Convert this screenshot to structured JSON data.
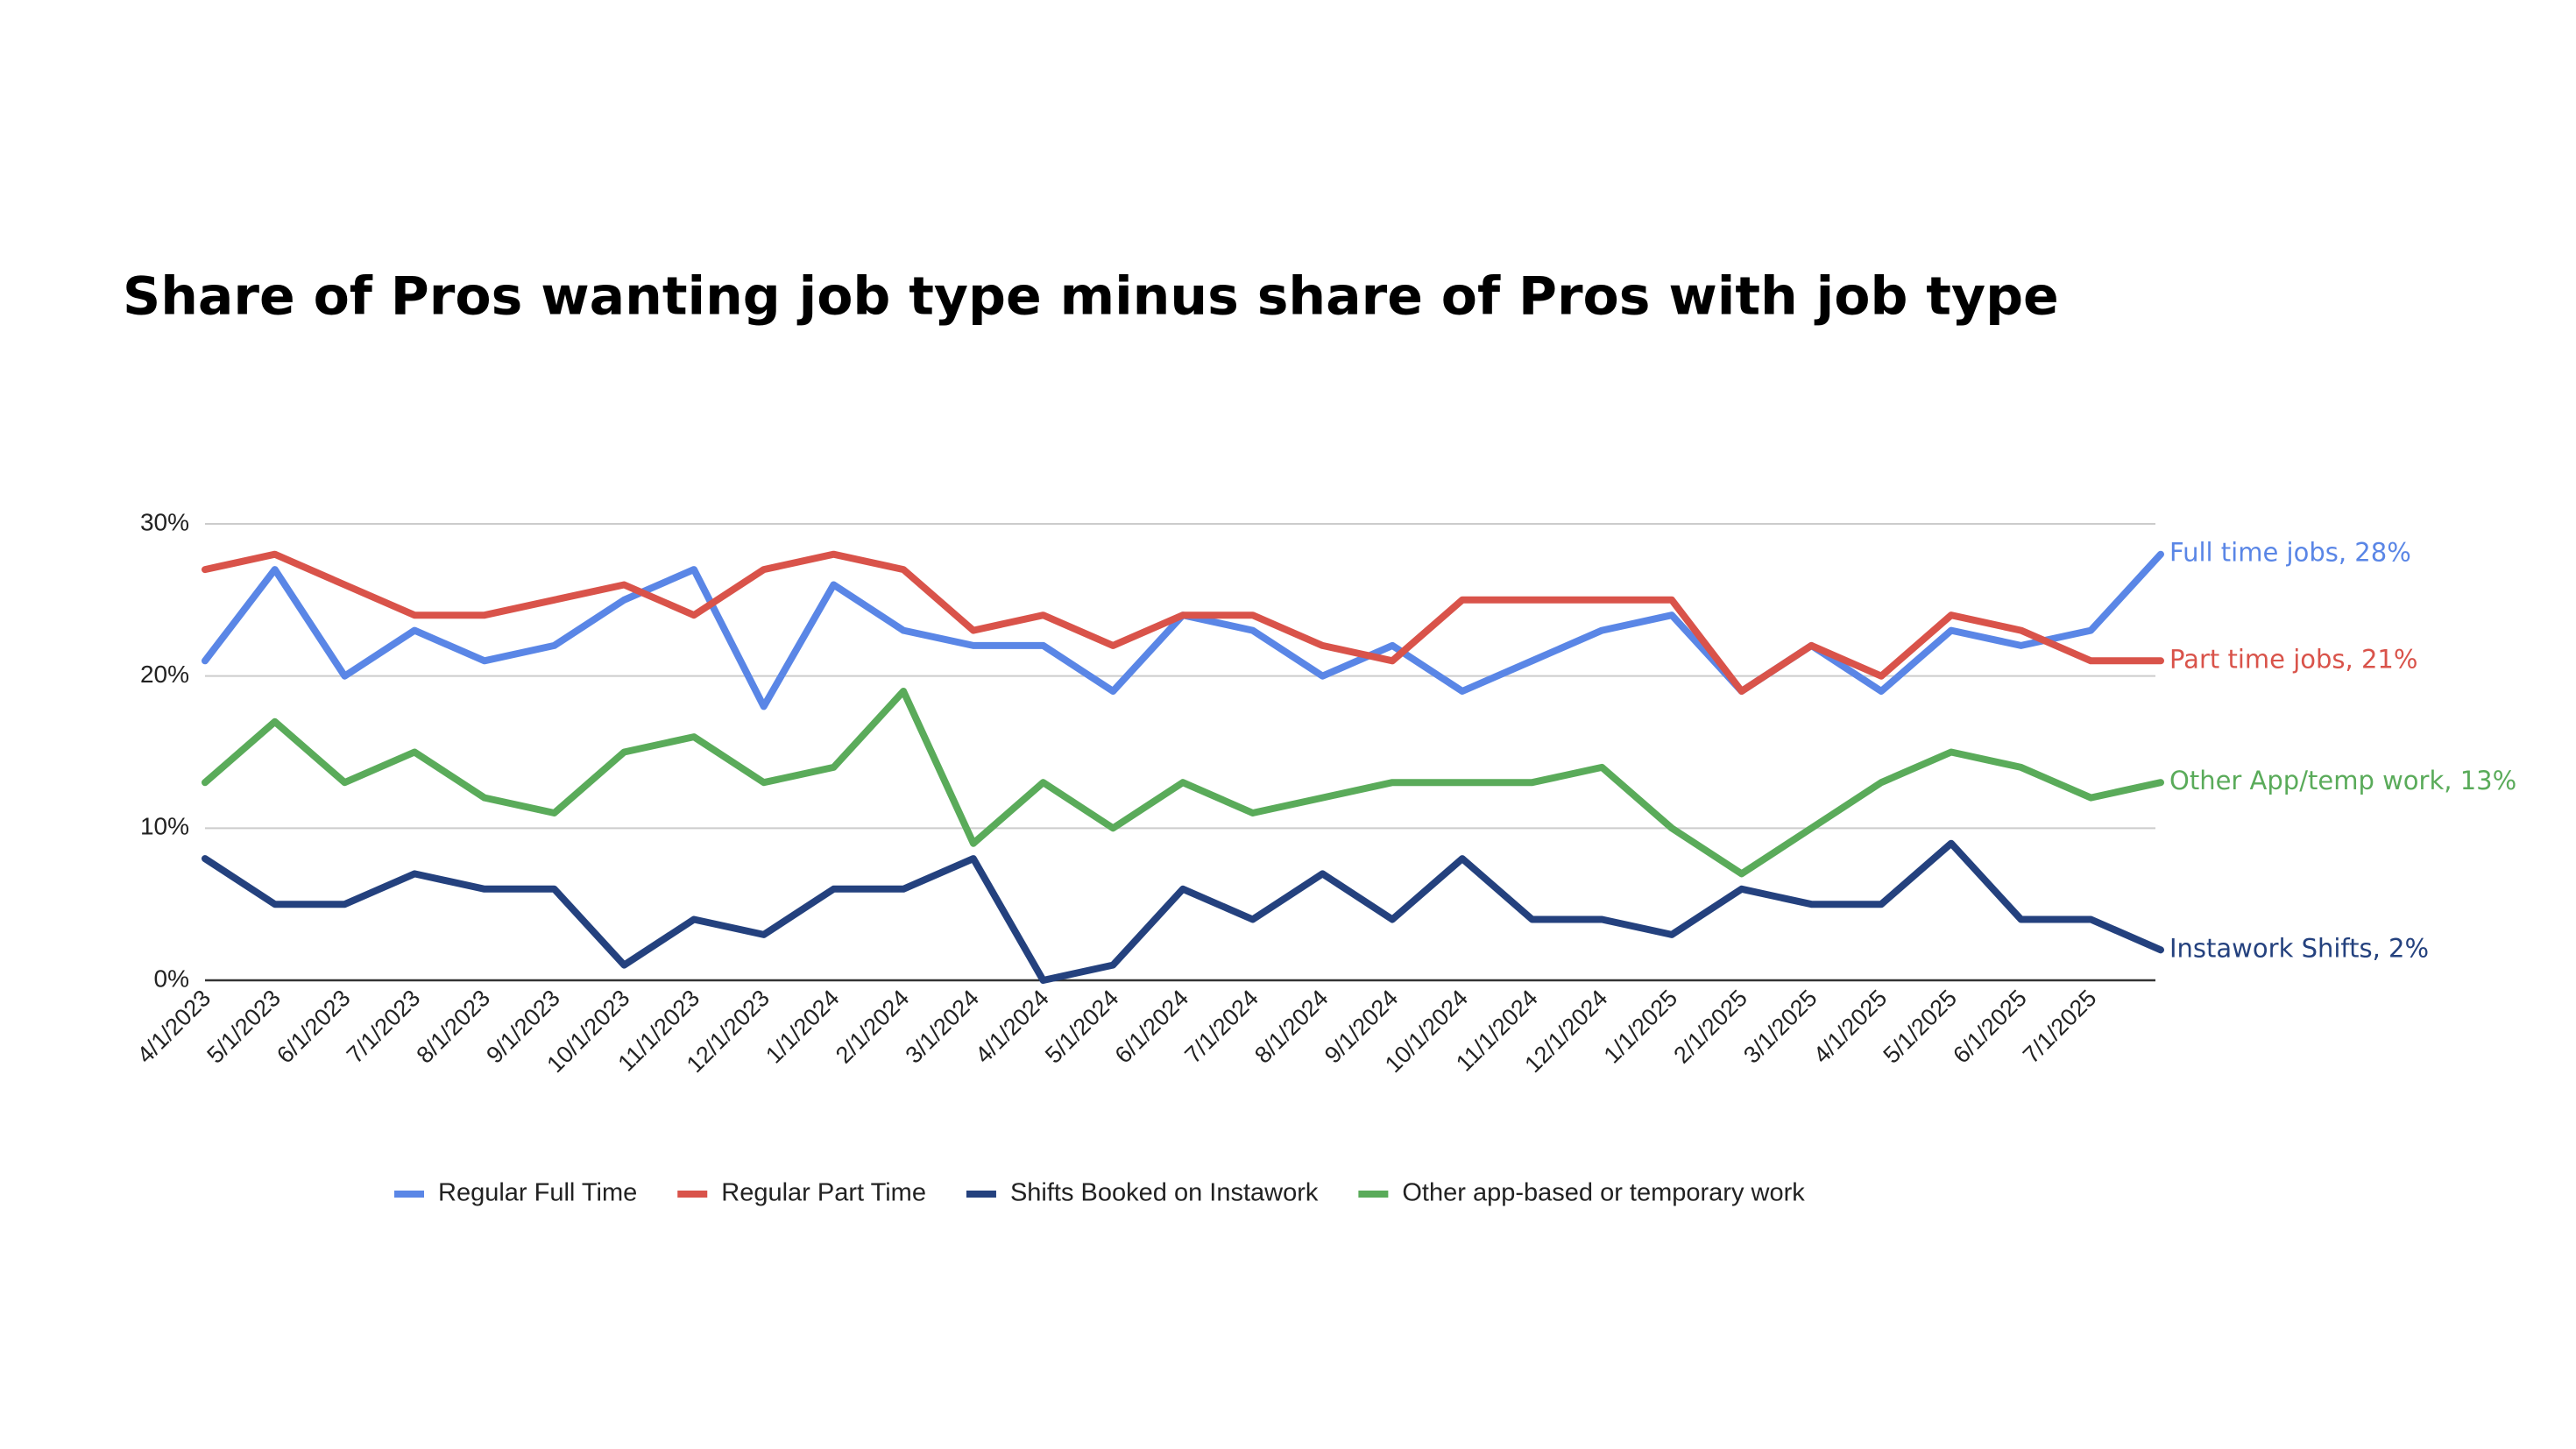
{
  "chart_data": {
    "type": "line",
    "title": "Share of Pros wanting job type minus share of Pros with job type",
    "categories": [
      "4/1/2023",
      "5/1/2023",
      "6/1/2023",
      "7/1/2023",
      "8/1/2023",
      "9/1/2023",
      "10/1/2023",
      "11/1/2023",
      "12/1/2023",
      "1/1/2024",
      "2/1/2024",
      "3/1/2024",
      "4/1/2024",
      "5/1/2024",
      "6/1/2024",
      "7/1/2024",
      "8/1/2024",
      "9/1/2024",
      "10/1/2024",
      "11/1/2024",
      "12/1/2024",
      "1/1/2025",
      "2/1/2025",
      "3/1/2025",
      "4/1/2025",
      "5/1/2025",
      "6/1/2025",
      "7/1/2025",
      null
    ],
    "series": [
      {
        "name": "Regular Full Time",
        "color": "#5a86e6",
        "end_label": "Full time jobs, 28%",
        "values": [
          21,
          27,
          20,
          23,
          21,
          22,
          25,
          27,
          18,
          26,
          23,
          22,
          22,
          19,
          24,
          23,
          20,
          22,
          19,
          21,
          23,
          24,
          19,
          22,
          19,
          23,
          22,
          23,
          28
        ]
      },
      {
        "name": "Regular Part Time",
        "color": "#d9534a",
        "end_label": "Part time jobs, 21%",
        "values": [
          27,
          28,
          26,
          24,
          24,
          25,
          26,
          24,
          27,
          28,
          27,
          23,
          24,
          22,
          24,
          24,
          22,
          21,
          25,
          25,
          25,
          25,
          19,
          22,
          20,
          24,
          23,
          21,
          21
        ]
      },
      {
        "name": "Shifts Booked on Instawork",
        "color": "#24417e",
        "end_label": "Instawork Shifts, 2%",
        "values": [
          8,
          5,
          5,
          7,
          6,
          6,
          1,
          4,
          3,
          6,
          6,
          8,
          0,
          1,
          6,
          4,
          7,
          4,
          8,
          4,
          4,
          3,
          6,
          5,
          5,
          9,
          4,
          4,
          2
        ]
      },
      {
        "name": "Other app-based or temporary work",
        "color": "#5aab5a",
        "end_label": "Other App/temp work, 13%",
        "values": [
          13,
          17,
          13,
          15,
          12,
          11,
          15,
          16,
          13,
          14,
          19,
          9,
          13,
          10,
          13,
          11,
          12,
          13,
          13,
          13,
          14,
          10,
          7,
          10,
          13,
          15,
          14,
          12,
          13
        ]
      }
    ],
    "ylim": [
      0,
      30
    ],
    "yticks": [
      {
        "value": 0,
        "label": "0%"
      },
      {
        "value": 10,
        "label": "10%"
      },
      {
        "value": 20,
        "label": "20%"
      },
      {
        "value": 30,
        "label": "30%"
      }
    ],
    "grid": true,
    "legend": "bottom"
  }
}
